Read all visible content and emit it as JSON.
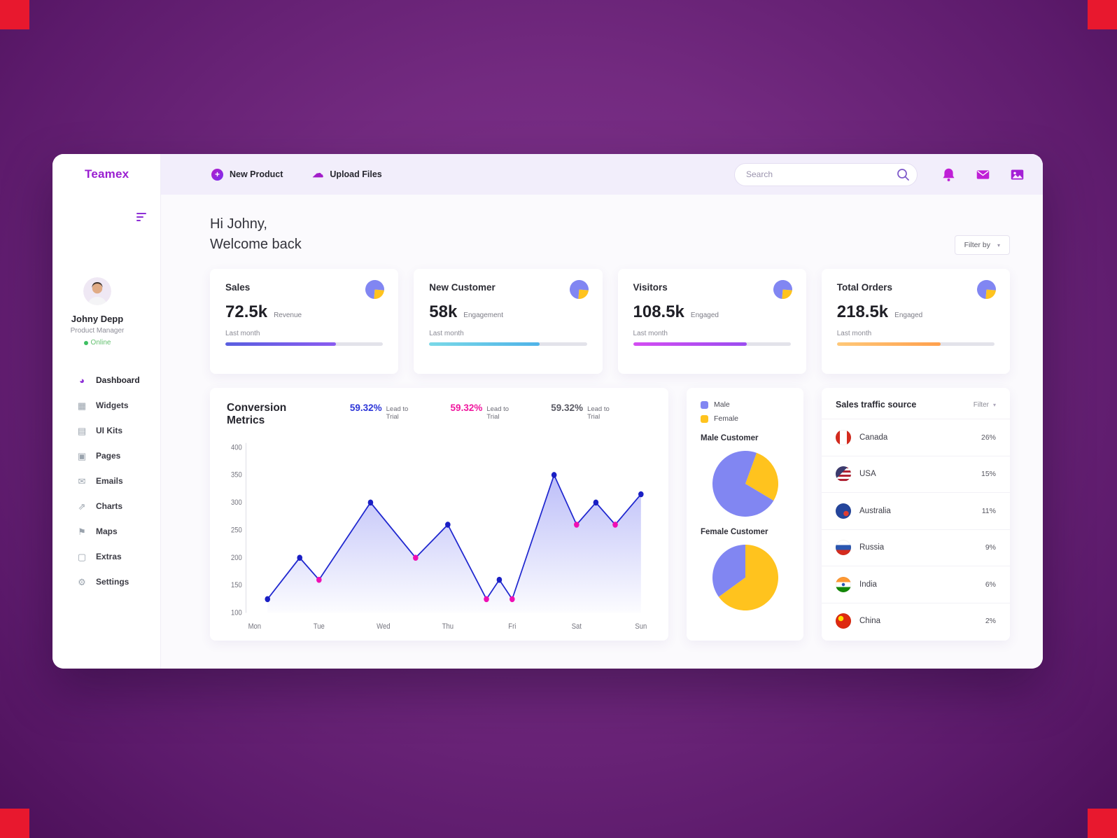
{
  "app": {
    "name": "Teamex"
  },
  "colors": {
    "accent": "#9a1fd1",
    "magenta": "#c21bd6",
    "male": "#8186f2",
    "female": "#ffc31e",
    "online": "#3dbf61"
  },
  "topbar": {
    "new_product_label": "New Product",
    "upload_files_label": "Upload Files",
    "search_placeholder": "Search"
  },
  "sidebar": {
    "user": {
      "name": "Johny Depp",
      "role": "Product Manager",
      "status": "Online"
    },
    "items": [
      {
        "label": "Dashboard",
        "icon": "dashboard-icon",
        "glyph": "◕",
        "active": true
      },
      {
        "label": "Widgets",
        "icon": "widgets-icon",
        "glyph": "▦",
        "active": false
      },
      {
        "label": "UI Kits",
        "icon": "ui-kits-icon",
        "glyph": "▤",
        "active": false
      },
      {
        "label": "Pages",
        "icon": "pages-icon",
        "glyph": "▣",
        "active": false
      },
      {
        "label": "Emails",
        "icon": "emails-icon",
        "glyph": "✉",
        "active": false
      },
      {
        "label": "Charts",
        "icon": "charts-icon",
        "glyph": "⇗",
        "active": false
      },
      {
        "label": "Maps",
        "icon": "maps-icon",
        "glyph": "⚑",
        "active": false
      },
      {
        "label": "Extras",
        "icon": "extras-icon",
        "glyph": "▢",
        "active": false
      },
      {
        "label": "Settings",
        "icon": "settings-icon",
        "glyph": "⚙",
        "active": false
      }
    ]
  },
  "header": {
    "greeting_line1": "Hi Johny,",
    "greeting_line2": "Welcome back",
    "filter_button": "Filter by"
  },
  "stat_cards": [
    {
      "title": "Sales",
      "value": "72.5k",
      "unit": "Revenue",
      "period": "Last month",
      "progress": 70,
      "bar_from": "#5a5fe0",
      "bar_to": "#8a5cf0"
    },
    {
      "title": "New Customer",
      "value": "58k",
      "unit": "Engagement",
      "period": "Last month",
      "progress": 70,
      "bar_from": "#7ad9e8",
      "bar_to": "#4fb3e8"
    },
    {
      "title": "Visitors",
      "value": "108.5k",
      "unit": "Engaged",
      "period": "Last month",
      "progress": 72,
      "bar_from": "#d44df2",
      "bar_to": "#9b4df0"
    },
    {
      "title": "Total Orders",
      "value": "218.5k",
      "unit": "Engaged",
      "period": "Last month",
      "progress": 66,
      "bar_from": "#ffc878",
      "bar_to": "#ffa04d"
    }
  ],
  "conversion": {
    "title": "Conversion Metrics",
    "stats": [
      {
        "value": "59.32%",
        "label": "Lead to Trial",
        "color": "#2c35d8"
      },
      {
        "value": "59.32%",
        "label": "Lead to Trial",
        "color": "#f0169e"
      },
      {
        "value": "59.32%",
        "label": "Lead to Trial",
        "color": "#5a5a64"
      }
    ]
  },
  "gender": {
    "male_title": "Male Customer",
    "female_title": "Female Customer",
    "legend": [
      {
        "label": "Male",
        "color": "#8186f2"
      },
      {
        "label": "Female",
        "color": "#ffc31e"
      }
    ]
  },
  "traffic": {
    "title": "Sales traffic source",
    "filter_label": "Filter",
    "rows": [
      {
        "country": "Canada",
        "slug": "canada",
        "share": "26%"
      },
      {
        "country": "USA",
        "slug": "usa",
        "share": "15%"
      },
      {
        "country": "Australia",
        "slug": "australia",
        "share": "11%"
      },
      {
        "country": "Russia",
        "slug": "russia",
        "share": "9%"
      },
      {
        "country": "India",
        "slug": "india",
        "share": "6%"
      },
      {
        "country": "China",
        "slug": "china",
        "share": "2%"
      }
    ]
  },
  "chart_data": [
    {
      "type": "line",
      "title": "Conversion Metrics",
      "x_ticks": [
        "Mon",
        "Tue",
        "Wed",
        "Thu",
        "Fri",
        "Sat",
        "Sun"
      ],
      "y_ticks": [
        400,
        350,
        300,
        250,
        200,
        150,
        100
      ],
      "ylim": [
        100,
        400
      ],
      "line_color": "#1f27cf",
      "area_fill_color": "#6b6ff0",
      "marker_colors": {
        "blue": "#1a1fc4",
        "pink": "#ef0fb4"
      },
      "points": [
        {
          "day": 0.2,
          "value": 125,
          "marker": "blue"
        },
        {
          "day": 0.7,
          "value": 200,
          "marker": "blue"
        },
        {
          "day": 1.0,
          "value": 160,
          "marker": "pink"
        },
        {
          "day": 1.8,
          "value": 300,
          "marker": "blue"
        },
        {
          "day": 2.5,
          "value": 200,
          "marker": "pink"
        },
        {
          "day": 2.75,
          "value": 230,
          "marker": "none"
        },
        {
          "day": 3.0,
          "value": 260,
          "marker": "blue"
        },
        {
          "day": 3.6,
          "value": 125,
          "marker": "pink"
        },
        {
          "day": 3.8,
          "value": 160,
          "marker": "blue"
        },
        {
          "day": 4.0,
          "value": 125,
          "marker": "pink"
        },
        {
          "day": 4.65,
          "value": 350,
          "marker": "blue"
        },
        {
          "day": 5.0,
          "value": 260,
          "marker": "pink"
        },
        {
          "day": 5.3,
          "value": 300,
          "marker": "blue"
        },
        {
          "day": 5.6,
          "value": 260,
          "marker": "pink"
        },
        {
          "day": 6.0,
          "value": 315,
          "marker": "blue"
        }
      ]
    },
    {
      "type": "pie",
      "title": "Male Customer",
      "labels": [
        "Male",
        "Female"
      ],
      "values": [
        72,
        28
      ],
      "colors": [
        "#8186f2",
        "#ffc31e"
      ]
    },
    {
      "type": "pie",
      "title": "Female Customer",
      "labels": [
        "Male",
        "Female"
      ],
      "values": [
        35,
        65
      ],
      "colors": [
        "#8186f2",
        "#ffc31e"
      ]
    }
  ]
}
